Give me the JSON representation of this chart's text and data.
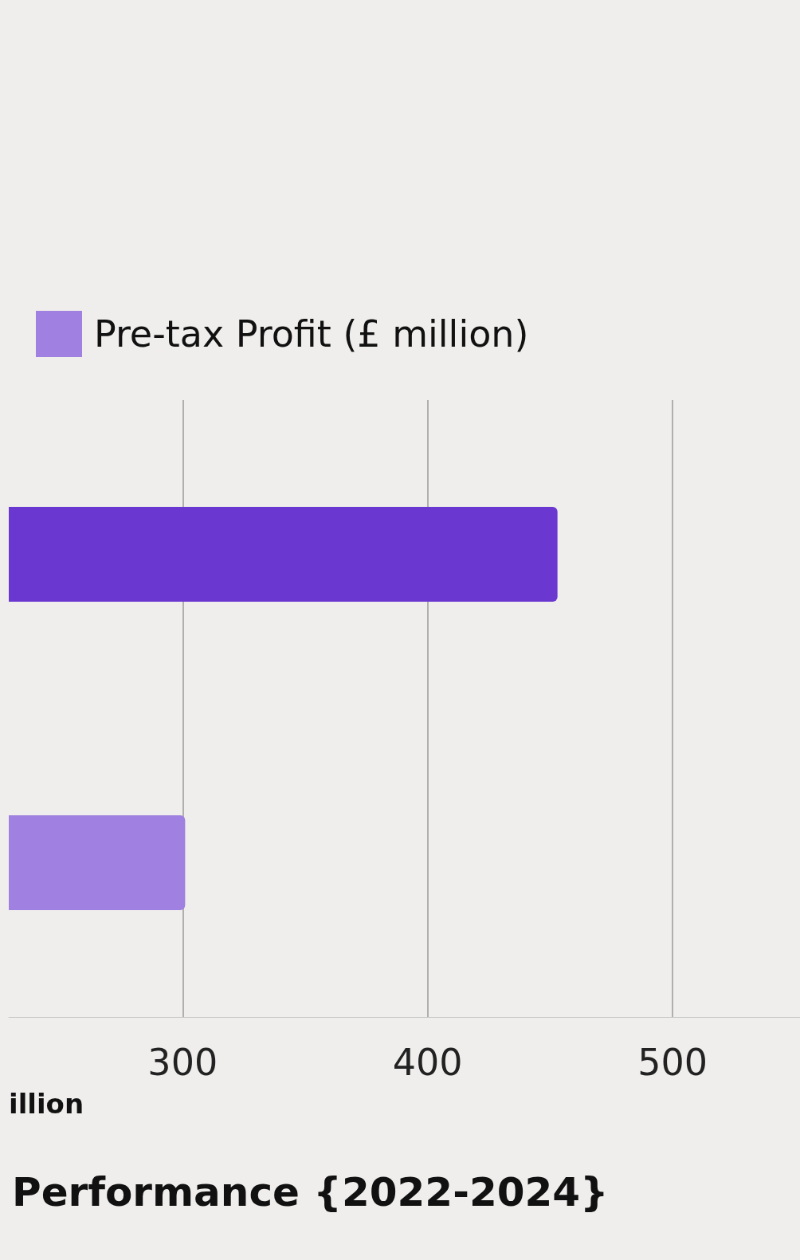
{
  "chart_data": {
    "type": "bar",
    "orientation": "horizontal",
    "title": "Performance {2022-2024}",
    "xlabel": "illion",
    "categories": [
      null,
      null
    ],
    "series": [
      {
        "name": "Pre-tax Profit (£ million)",
        "color": "#a080e0",
        "colors": [
          "#6a38d0",
          "#a080e0"
        ],
        "values": [
          453,
          301
        ]
      }
    ],
    "xlim": [
      229,
      552
    ],
    "xticks": [
      300,
      400,
      500
    ],
    "grid": "x",
    "legend": "top left"
  }
}
